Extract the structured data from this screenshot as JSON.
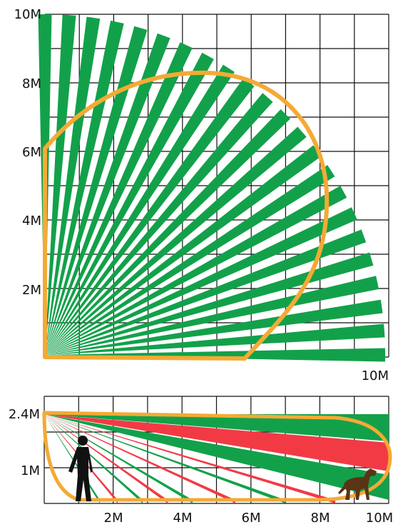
{
  "top_view": {
    "y_axis_labels": [
      "10M",
      "8M",
      "6M",
      "4M",
      "2M"
    ],
    "x_axis_label": "10M"
  },
  "side_view": {
    "y_axis_labels": [
      "2.4M",
      "1M"
    ],
    "x_axis_labels": [
      "2M",
      "4M",
      "6M",
      "8M",
      "10M"
    ]
  },
  "colors": {
    "beam_green": "#12a14a",
    "beam_red": "#f23a45",
    "coverage_outline": "#f4aa35",
    "grid": "#111111",
    "person": "#111111",
    "dog": "#5a3416"
  },
  "figures": [
    "person-silhouette",
    "dog-silhouette"
  ]
}
